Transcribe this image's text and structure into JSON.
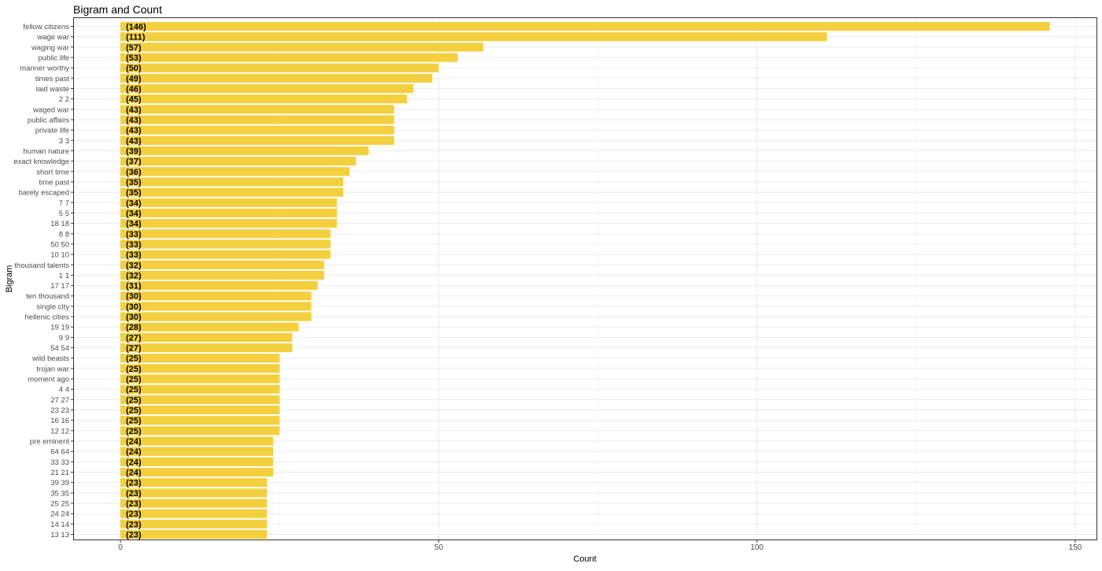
{
  "chart_data": {
    "type": "bar",
    "orientation": "horizontal",
    "title": "Bigram and Count",
    "xlabel": "Count",
    "ylabel": "Bigram",
    "xlim": [
      0,
      150
    ],
    "xticks": [
      0,
      50,
      100,
      150
    ],
    "grid": true,
    "bar_color": "#F4D03F",
    "categories": [
      "fellow citizens",
      "wage war",
      "waging war",
      "public life",
      "manner worthy",
      "times past",
      "laid waste",
      "2 2",
      "waged war",
      "public affairs",
      "private life",
      "3 3",
      "human nature",
      "exact knowledge",
      "short time",
      "time past",
      "barely escaped",
      "7 7",
      "5 5",
      "18 18",
      "8 8",
      "50 50",
      "10 10",
      "thousand talents",
      "1 1",
      "17 17",
      "ten thousand",
      "single city",
      "hellenic cities",
      "19 19",
      "9 9",
      "54 54",
      "wild beasts",
      "trojan war",
      "moment ago",
      "4 4",
      "27 27",
      "23 23",
      "16 16",
      "12 12",
      "pre eminent",
      "64 64",
      "33 33",
      "21 21",
      "39 39",
      "35 35",
      "25 25",
      "24 24",
      "14 14",
      "13 13"
    ],
    "values": [
      146,
      111,
      57,
      53,
      50,
      49,
      46,
      45,
      43,
      43,
      43,
      43,
      39,
      37,
      36,
      35,
      35,
      34,
      34,
      34,
      33,
      33,
      33,
      32,
      32,
      31,
      30,
      30,
      30,
      28,
      27,
      27,
      25,
      25,
      25,
      25,
      25,
      25,
      25,
      25,
      24,
      24,
      24,
      24,
      23,
      23,
      23,
      23,
      23,
      23
    ],
    "data_labels": [
      "(146)",
      "(111)",
      "(57)",
      "(53)",
      "(50)",
      "(49)",
      "(46)",
      "(45)",
      "(43)",
      "(43)",
      "(43)",
      "(43)",
      "(39)",
      "(37)",
      "(36)",
      "(35)",
      "(35)",
      "(34)",
      "(34)",
      "(34)",
      "(33)",
      "(33)",
      "(33)",
      "(32)",
      "(32)",
      "(31)",
      "(30)",
      "(30)",
      "(30)",
      "(28)",
      "(27)",
      "(27)",
      "(25)",
      "(25)",
      "(25)",
      "(25)",
      "(25)",
      "(25)",
      "(25)",
      "(25)",
      "(24)",
      "(24)",
      "(24)",
      "(24)",
      "(23)",
      "(23)",
      "(23)",
      "(23)",
      "(23)",
      "(23)"
    ]
  }
}
